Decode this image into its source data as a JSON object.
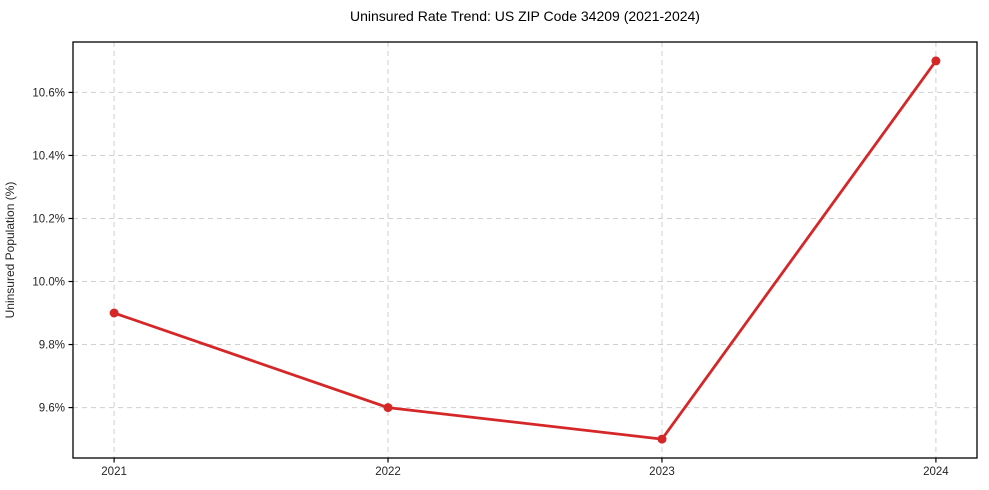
{
  "chart_data": {
    "type": "line",
    "title": "Uninsured Rate Trend: US ZIP Code 34209 (2021-2024)",
    "xlabel": "",
    "ylabel": "Uninsured Population (%)",
    "x": [
      2021,
      2022,
      2023,
      2024
    ],
    "values": [
      9.9,
      9.6,
      9.5,
      10.7
    ],
    "xlim": [
      2020.85,
      2024.15
    ],
    "ylim": [
      9.44,
      10.76
    ],
    "xticks": [
      2021,
      2022,
      2023,
      2024
    ],
    "xtick_labels": [
      "2021",
      "2022",
      "2023",
      "2024"
    ],
    "yticks": [
      9.6,
      9.8,
      10.0,
      10.2,
      10.4,
      10.6
    ],
    "ytick_labels": [
      "9.6%",
      "9.8%",
      "10.0%",
      "10.2%",
      "10.4%",
      "10.6%"
    ],
    "grid": true,
    "legend": null,
    "line_color": "#d62728",
    "grid_color": "#cfcfcf",
    "spine_color": "#000000",
    "background_color": "#ffffff",
    "marker": "circle"
  }
}
